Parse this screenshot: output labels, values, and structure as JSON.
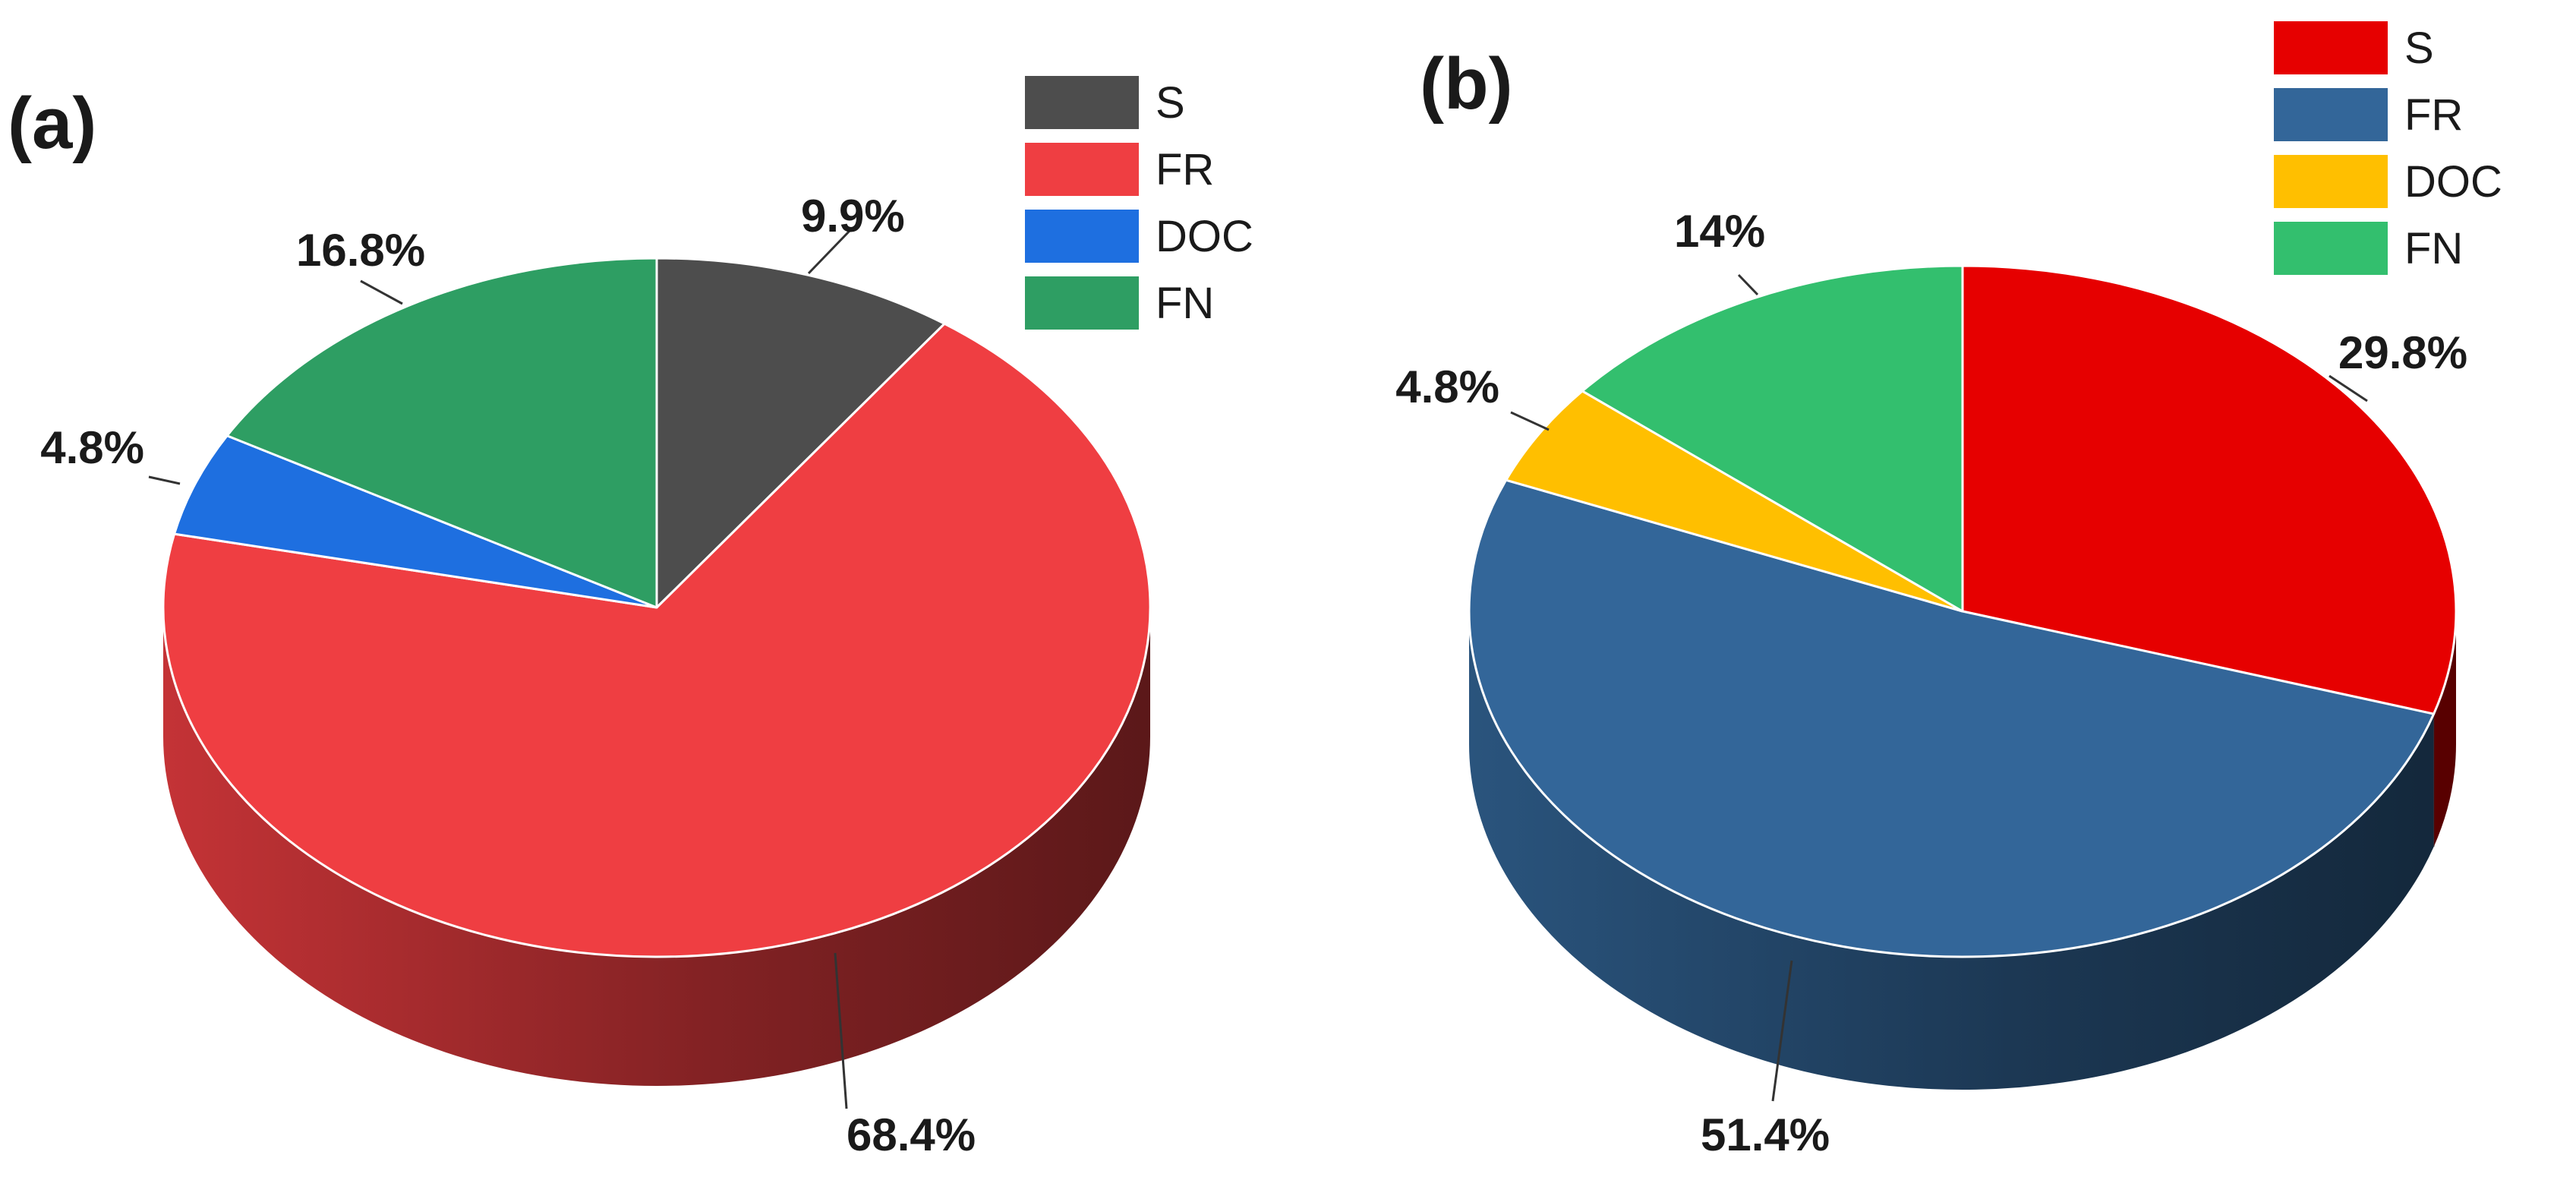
{
  "chart_data": [
    {
      "type": "pie",
      "panel_label": "(a)",
      "legend_position": "top-right",
      "categories": [
        "S",
        "FR",
        "DOC",
        "FN"
      ],
      "values": [
        9.9,
        68.4,
        4.8,
        16.8
      ],
      "labels": [
        "9.9%",
        "68.4%",
        "4.8%",
        "16.8%"
      ],
      "colors": [
        "#4d4d4d",
        "#ef3e42",
        "#1e6fe0",
        "#2e9e63"
      ]
    },
    {
      "type": "pie",
      "panel_label": "(b)",
      "legend_position": "top-right",
      "categories": [
        "S",
        "FR",
        "DOC",
        "FN"
      ],
      "values": [
        29.8,
        51.4,
        4.8,
        14
      ],
      "labels": [
        "29.8%",
        "51.4%",
        "4.8%",
        "14%"
      ],
      "colors": [
        "#e60000",
        "#336699",
        "#ffbf00",
        "#33bf6e"
      ]
    }
  ]
}
